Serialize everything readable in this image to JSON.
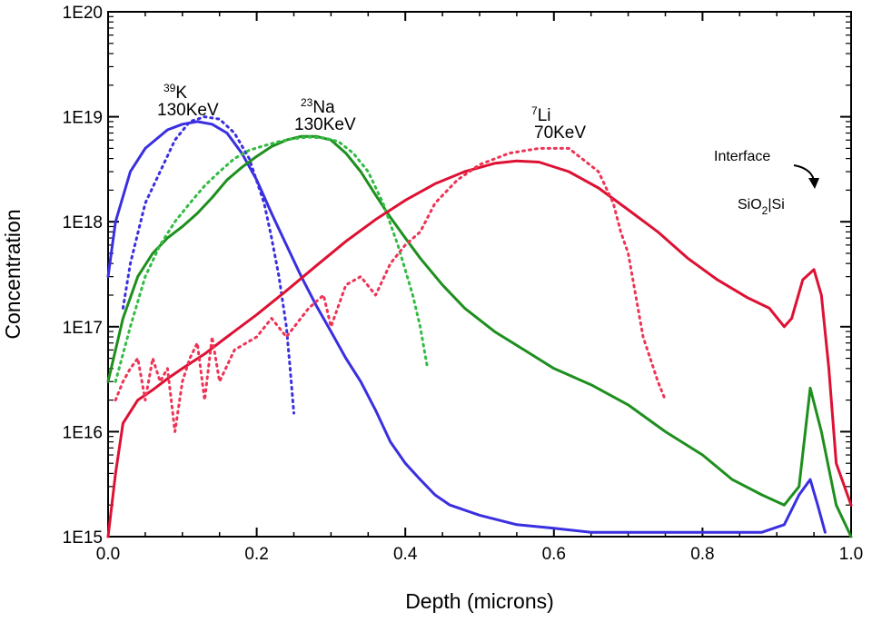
{
  "chart_data": {
    "type": "line",
    "xlabel": "Depth (microns)",
    "ylabel": "Concentration",
    "xlim": [
      0,
      1.0
    ],
    "ylim": [
      1000000000000000.0,
      1e+20
    ],
    "yscale": "log",
    "grid": false,
    "x_ticks": [
      0.0,
      0.2,
      0.4,
      0.6,
      0.8,
      1.0
    ],
    "x_tick_labels": [
      "0.0",
      "0.2",
      "0.4",
      "0.6",
      "0.8",
      "1.0"
    ],
    "y_ticks": [
      1000000000000000.0,
      1e+16,
      1e+17,
      1e+18,
      1e+19,
      1e+20
    ],
    "y_tick_labels": [
      "1E15",
      "1E16",
      "1E17",
      "1E18",
      "1E19",
      "1E20"
    ],
    "series": [
      {
        "color": "#3a2fe0",
        "style": "solid",
        "x": [
          0.0,
          0.01,
          0.03,
          0.05,
          0.08,
          0.1,
          0.12,
          0.14,
          0.16,
          0.18,
          0.2,
          0.22,
          0.24,
          0.26,
          0.28,
          0.3,
          0.32,
          0.34,
          0.36,
          0.38,
          0.4,
          0.42,
          0.44,
          0.46,
          0.5,
          0.55,
          0.6,
          0.65,
          0.7,
          0.75,
          0.8,
          0.85,
          0.88,
          0.91,
          0.93,
          0.945,
          0.955,
          0.965
        ],
        "y": [
          3e+17,
          1e+18,
          3e+18,
          5e+18,
          7.5e+18,
          8.5e+18,
          9e+18,
          8.5e+18,
          7e+18,
          4.5e+18,
          2.5e+18,
          1.2e+18,
          6e+17,
          3e+17,
          1.6e+17,
          9e+16,
          5e+16,
          3e+16,
          1.6e+16,
          8000000000000000.0,
          5000000000000000.0,
          3500000000000000.0,
          2500000000000000.0,
          2000000000000000.0,
          1600000000000000.0,
          1300000000000000.0,
          1200000000000000.0,
          1100000000000000.0,
          1100000000000000.0,
          1100000000000000.0,
          1100000000000000.0,
          1100000000000000.0,
          1100000000000000.0,
          1300000000000000.0,
          2500000000000000.0,
          3500000000000000.0,
          2000000000000000.0,
          1100000000000000.0
        ]
      },
      {
        "color": "#3a2fe0",
        "style": "dotted",
        "x": [
          0.02,
          0.03,
          0.05,
          0.07,
          0.09,
          0.11,
          0.13,
          0.15,
          0.17,
          0.19,
          0.21,
          0.22,
          0.23,
          0.24,
          0.245,
          0.25
        ],
        "y": [
          1.5e+17,
          4e+17,
          1.5e+18,
          3e+18,
          6e+18,
          9e+18,
          1e+19,
          9.5e+18,
          7e+18,
          4e+18,
          1.5e+18,
          7e+17,
          3e+17,
          1e+17,
          4e+16,
          1.5e+16
        ]
      },
      {
        "color": "#1e8f1e",
        "style": "solid",
        "x": [
          0.0,
          0.01,
          0.02,
          0.04,
          0.06,
          0.08,
          0.1,
          0.12,
          0.14,
          0.16,
          0.18,
          0.2,
          0.22,
          0.24,
          0.26,
          0.28,
          0.3,
          0.32,
          0.34,
          0.36,
          0.38,
          0.4,
          0.42,
          0.45,
          0.48,
          0.52,
          0.56,
          0.6,
          0.65,
          0.7,
          0.75,
          0.8,
          0.84,
          0.88,
          0.91,
          0.93,
          0.945,
          0.96,
          0.98,
          1.0
        ],
        "y": [
          3e+16,
          6e+16,
          1.2e+17,
          3e+17,
          5e+17,
          7e+17,
          9e+17,
          1.2e+18,
          1.7e+18,
          2.5e+18,
          3.3e+18,
          4.2e+18,
          5.2e+18,
          6e+18,
          6.5e+18,
          6.5e+18,
          6e+18,
          4.5e+18,
          3e+18,
          1.8e+18,
          1.1e+18,
          7e+17,
          4.5e+17,
          2.5e+17,
          1.5e+17,
          9e+16,
          6e+16,
          4e+16,
          2.8e+16,
          1.8e+16,
          1e+16,
          6000000000000000.0,
          3500000000000000.0,
          2500000000000000.0,
          2000000000000000.0,
          3000000000000000.0,
          2.6e+16,
          1e+16,
          2000000000000000.0,
          1000000000000000.0
        ]
      },
      {
        "color": "#33bb44",
        "style": "dotted",
        "x": [
          0.01,
          0.03,
          0.05,
          0.07,
          0.09,
          0.11,
          0.13,
          0.15,
          0.17,
          0.19,
          0.21,
          0.23,
          0.25,
          0.27,
          0.29,
          0.31,
          0.33,
          0.35,
          0.37,
          0.39,
          0.41,
          0.42,
          0.43
        ],
        "y": [
          3e+16,
          1e+17,
          3e+17,
          6e+17,
          1e+18,
          1.5e+18,
          2.2e+18,
          3e+18,
          4e+18,
          4.8e+18,
          5.3e+18,
          5.8e+18,
          6.2e+18,
          6.4e+18,
          6.3e+18,
          5.8e+18,
          4.5e+18,
          3e+18,
          1.5e+18,
          6e+17,
          2e+17,
          1e+17,
          4e+16
        ]
      },
      {
        "color": "#dd1133",
        "style": "solid",
        "x": [
          0.0,
          0.01,
          0.02,
          0.04,
          0.06,
          0.08,
          0.1,
          0.13,
          0.16,
          0.2,
          0.24,
          0.28,
          0.32,
          0.36,
          0.4,
          0.44,
          0.48,
          0.52,
          0.55,
          0.58,
          0.62,
          0.66,
          0.7,
          0.74,
          0.78,
          0.82,
          0.86,
          0.89,
          0.91,
          0.92,
          0.935,
          0.95,
          0.96,
          0.97,
          0.98,
          1.0
        ],
        "y": [
          1000000000000000.0,
          4000000000000000.0,
          1.2e+16,
          2e+16,
          2.5e+16,
          3.2e+16,
          4e+16,
          5.5e+16,
          8e+16,
          1.3e+17,
          2.2e+17,
          3.8e+17,
          6.5e+17,
          1.05e+18,
          1.6e+18,
          2.3e+18,
          3e+18,
          3.6e+18,
          3.8e+18,
          3.7e+18,
          3e+18,
          2.1e+18,
          1.3e+18,
          8e+17,
          4.5e+17,
          2.8e+17,
          1.9e+17,
          1.5e+17,
          1e+17,
          1.2e+17,
          2.8e+17,
          3.5e+17,
          2e+17,
          4e+16,
          5000000000000000.0,
          2000000000000000.0
        ]
      },
      {
        "color": "#ee3355",
        "style": "dotted",
        "x": [
          0.01,
          0.02,
          0.03,
          0.04,
          0.05,
          0.06,
          0.07,
          0.08,
          0.09,
          0.1,
          0.11,
          0.12,
          0.13,
          0.14,
          0.15,
          0.17,
          0.2,
          0.22,
          0.24,
          0.27,
          0.29,
          0.3,
          0.32,
          0.34,
          0.36,
          0.38,
          0.4,
          0.42,
          0.44,
          0.47,
          0.5,
          0.54,
          0.58,
          0.62,
          0.66,
          0.68,
          0.69,
          0.7,
          0.71,
          0.72,
          0.74,
          0.75
        ],
        "y": [
          2e+16,
          3e+16,
          4e+16,
          5e+16,
          2e+16,
          5e+16,
          3e+16,
          4e+16,
          1e+16,
          3e+16,
          5e+16,
          7e+16,
          2e+16,
          8e+16,
          3e+16,
          6e+16,
          8e+16,
          1.2e+17,
          8e+16,
          1.5e+17,
          2e+17,
          1e+17,
          2.5e+17,
          3e+17,
          2e+17,
          4e+17,
          6e+17,
          8e+17,
          1.5e+18,
          2.5e+18,
          3.5e+18,
          4.5e+18,
          5e+18,
          5e+18,
          3e+18,
          1.5e+18,
          8e+17,
          5e+17,
          2e+17,
          8e+16,
          3e+16,
          2e+16
        ]
      }
    ],
    "annotations": [
      {
        "sup": "39",
        "line1": "K",
        "line2": "130KeV"
      },
      {
        "sup": "23",
        "line1": "Na",
        "line2": "130KeV"
      },
      {
        "sup": "7",
        "line1": "Li",
        "line2": "70KeV"
      },
      {
        "text": "Interface"
      },
      {
        "pre": "SiO",
        "sub": "2",
        "post": "|Si"
      }
    ]
  }
}
